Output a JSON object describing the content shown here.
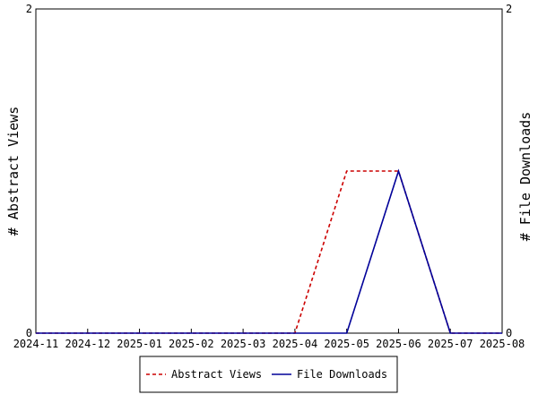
{
  "chart_data": {
    "type": "line",
    "x": [
      "2024-11",
      "2024-12",
      "2025-01",
      "2025-02",
      "2025-03",
      "2025-04",
      "2025-05",
      "2025-06",
      "2025-07",
      "2025-08"
    ],
    "xlabel": "",
    "ylabel_left": "# Abstract Views",
    "ylabel_right": "# File Downloads",
    "ylim": [
      0,
      2
    ],
    "yticks_left": [
      "0",
      "2"
    ],
    "yticks_right": [
      "0",
      "2"
    ],
    "grid": false,
    "legend_placement": "bottom-center",
    "series": [
      {
        "name": "Abstract Views",
        "color": "#cc0000",
        "style": "dashed",
        "axis": "left",
        "values": [
          0,
          0,
          0,
          0,
          0,
          0,
          1,
          1,
          0,
          0
        ]
      },
      {
        "name": "File Downloads",
        "color": "#000099",
        "style": "solid",
        "axis": "right",
        "values": [
          0,
          0,
          0,
          0,
          0,
          0,
          0,
          1,
          0,
          0
        ]
      }
    ]
  }
}
